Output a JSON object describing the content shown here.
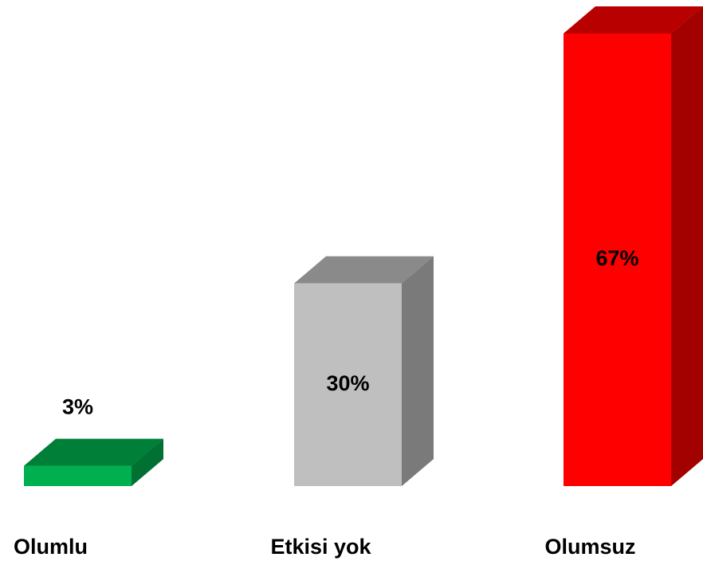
{
  "chart_data": {
    "type": "bar3d",
    "categories": [
      "Olumlu",
      "Etkisi yok",
      "Olumsuz"
    ],
    "values": [
      3,
      30,
      67
    ],
    "value_labels": [
      "3%",
      "30%",
      "67%"
    ],
    "colors": [
      "#00b050",
      "#bfbfbf",
      "#ff0000"
    ]
  }
}
